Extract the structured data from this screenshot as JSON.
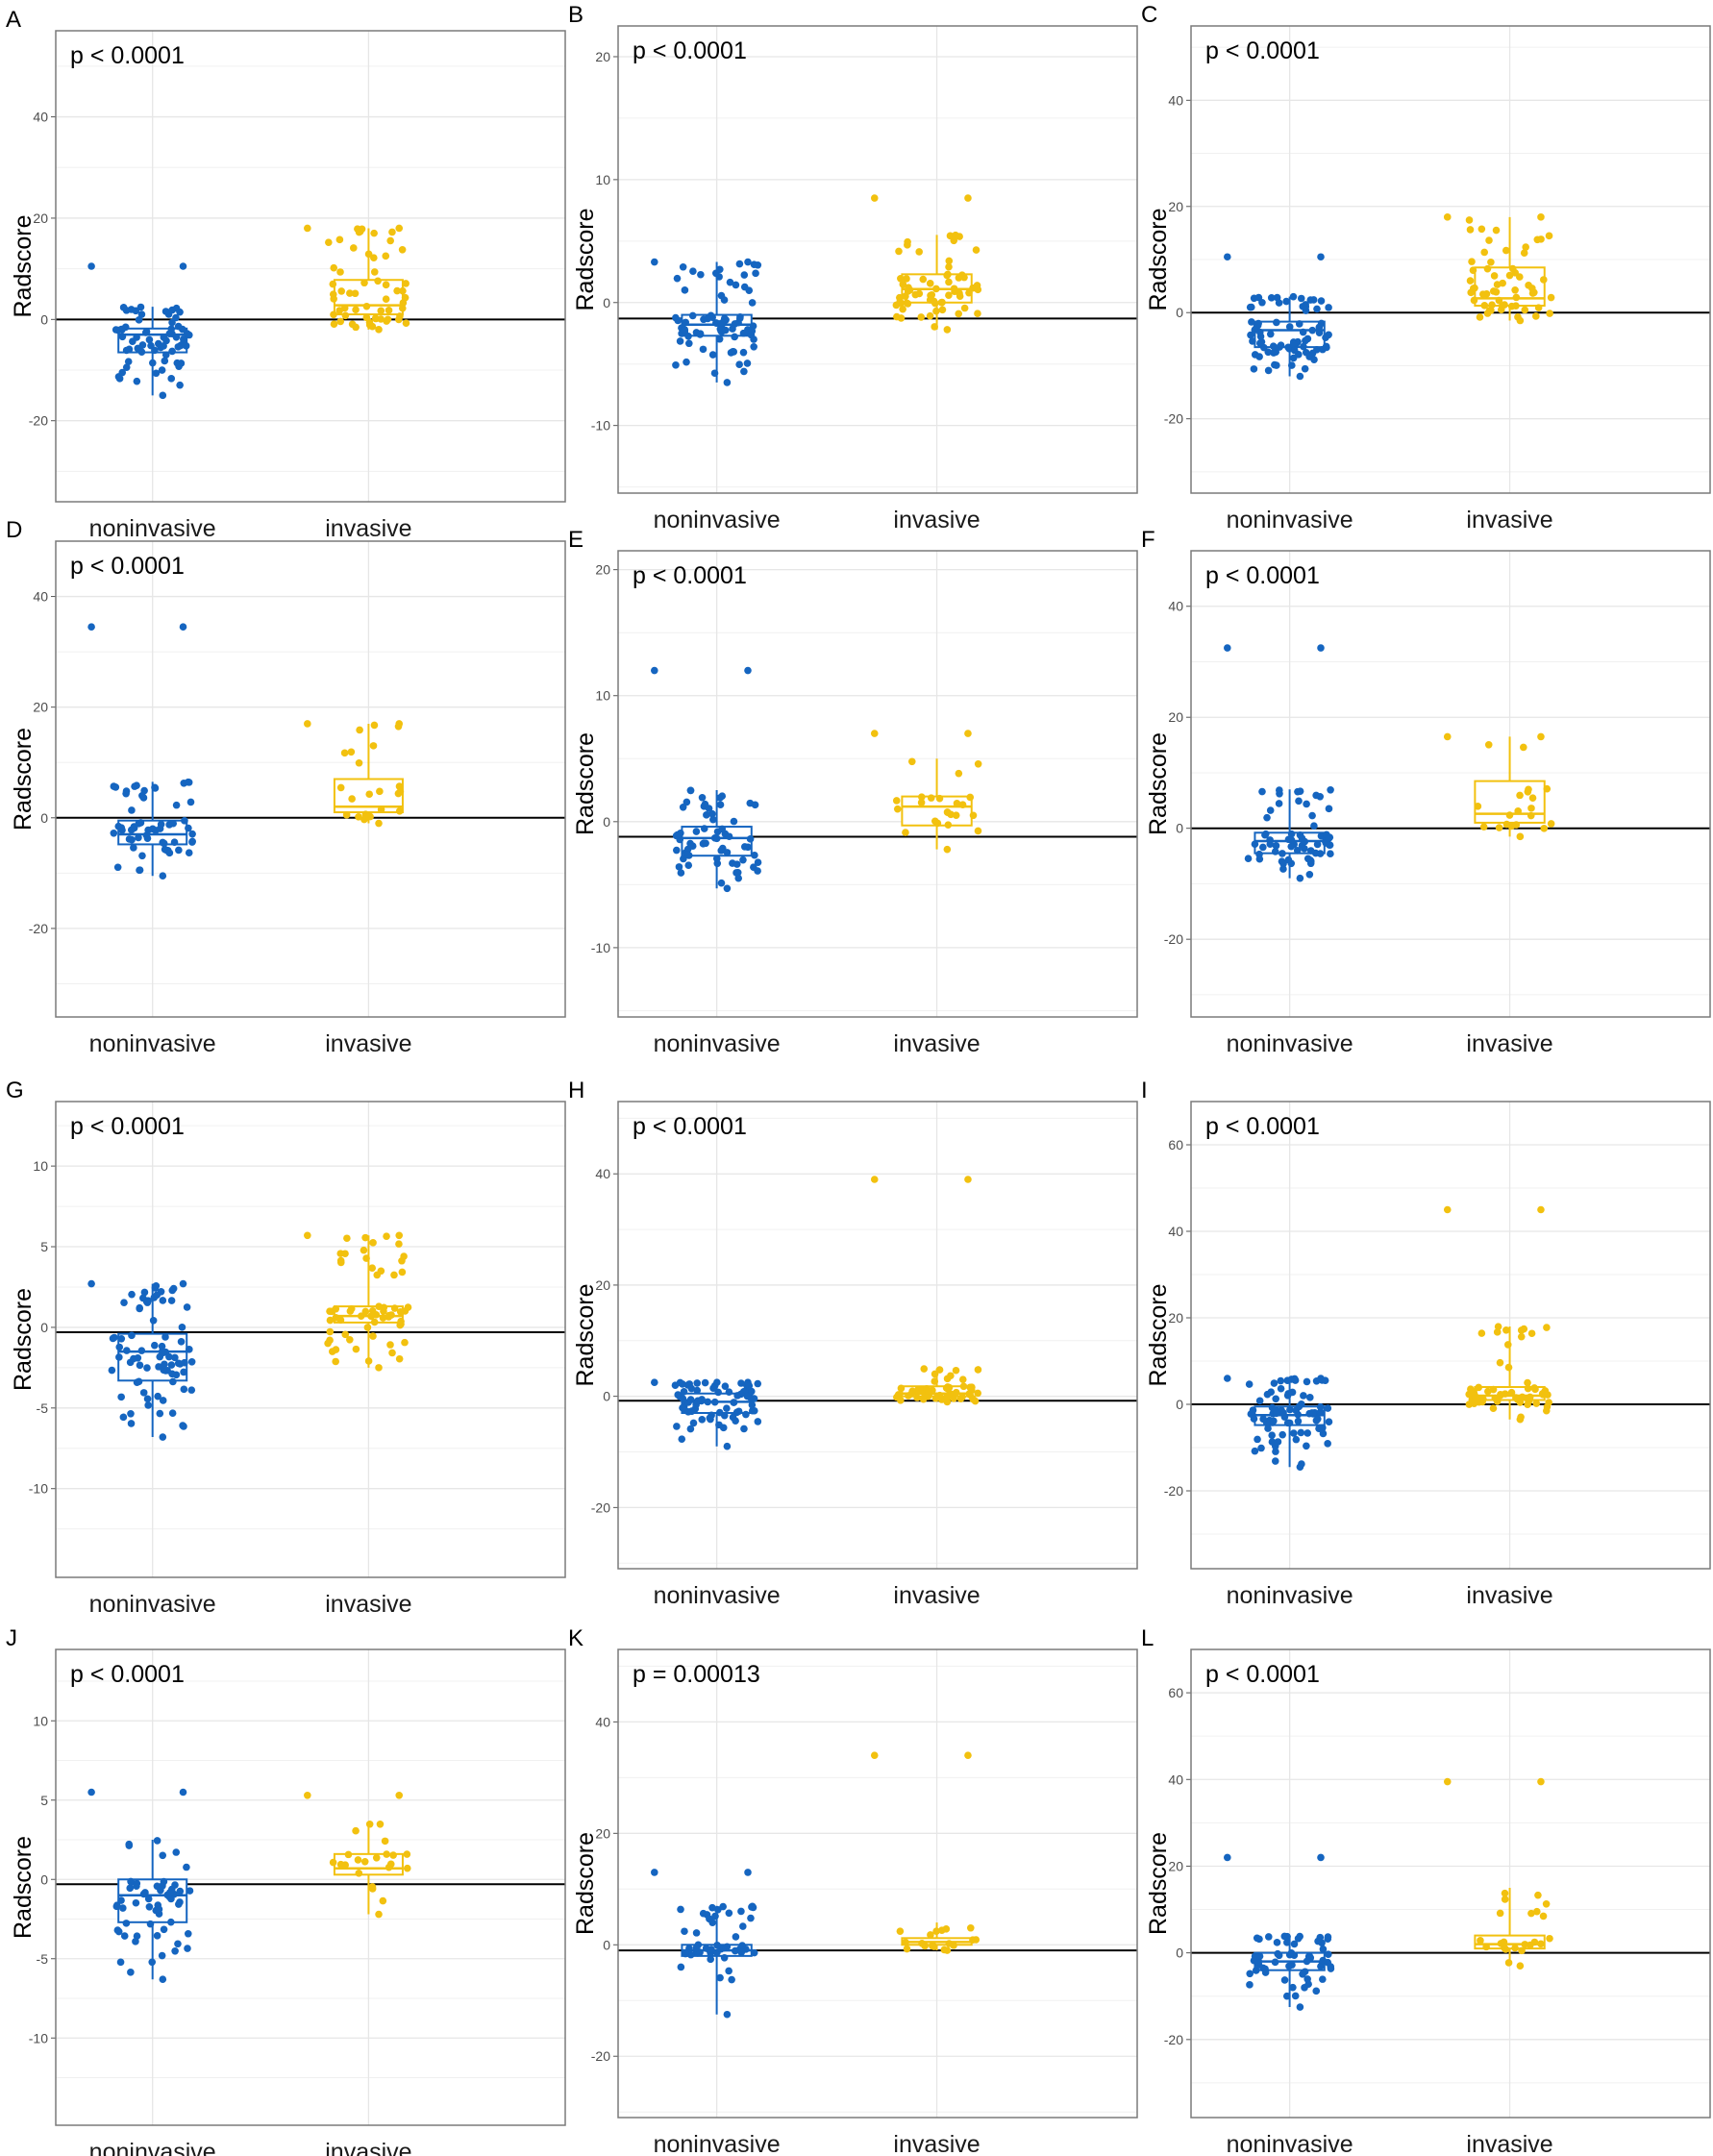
{
  "figure": {
    "colors": {
      "noninvasive": "#1565c0",
      "invasive": "#f2c10f",
      "frame": "#7a7a7a",
      "grid": "#e6e6e6",
      "zero_line": "#000000"
    }
  },
  "chart_data": [
    {
      "panel": "A",
      "type": "box-strip",
      "p_text": "p < 0.0001",
      "ylabel": "Radscore",
      "categories": [
        "noninvasive",
        "invasive"
      ],
      "yticks": [
        -20,
        0,
        20,
        40
      ],
      "ylim": [
        -36,
        57
      ],
      "hline": 0,
      "boxes": [
        {
          "name": "noninvasive",
          "q1": -6.5,
          "median": -3,
          "q3": -1.8,
          "whisker_low": -15,
          "whisker_high": 2.5,
          "n": 70,
          "points_min": -15,
          "points_max": 10.5
        },
        {
          "name": "invasive",
          "q1": 1,
          "median": 2.8,
          "q3": 7.8,
          "whisker_low": -2,
          "whisker_high": 18,
          "n": 60,
          "points_min": -2,
          "points_max": 18
        }
      ]
    },
    {
      "panel": "B",
      "type": "box-strip",
      "p_text": "p < 0.0001",
      "ylabel": "Radscore",
      "categories": [
        "noninvasive",
        "invasive"
      ],
      "yticks": [
        -10,
        0,
        10,
        20
      ],
      "ylim": [
        -15.5,
        22.5
      ],
      "hline": -1.3,
      "boxes": [
        {
          "name": "noninvasive",
          "q1": -2.7,
          "median": -1.8,
          "q3": -1.0,
          "whisker_low": -6.5,
          "whisker_high": 3.3,
          "n": 80,
          "points_min": -6.5,
          "points_max": 3.3
        },
        {
          "name": "invasive",
          "q1": 0,
          "median": 1.1,
          "q3": 2.3,
          "whisker_low": -2.2,
          "whisker_high": 5.5,
          "n": 65,
          "points_min": -2.2,
          "points_max": 8.5
        }
      ]
    },
    {
      "panel": "C",
      "type": "box-strip",
      "p_text": "p < 0.0001",
      "ylabel": "Radscore",
      "categories": [
        "noninvasive",
        "invasive"
      ],
      "yticks": [
        -20,
        0,
        20,
        40
      ],
      "ylim": [
        -34,
        54
      ],
      "hline": 0,
      "boxes": [
        {
          "name": "noninvasive",
          "q1": -6.5,
          "median": -3.3,
          "q3": -1.7,
          "whisker_low": -12,
          "whisker_high": 3,
          "n": 80,
          "points_min": -12,
          "points_max": 10.5
        },
        {
          "name": "invasive",
          "q1": 1.3,
          "median": 2.7,
          "q3": 8.5,
          "whisker_low": -1.5,
          "whisker_high": 18,
          "n": 60,
          "points_min": -1.5,
          "points_max": 18
        }
      ]
    },
    {
      "panel": "D",
      "type": "box-strip",
      "p_text": "p < 0.0001",
      "ylabel": "Radscore",
      "categories": [
        "noninvasive",
        "invasive"
      ],
      "yticks": [
        -20,
        0,
        20,
        40
      ],
      "ylim": [
        -36,
        50
      ],
      "hline": 0,
      "boxes": [
        {
          "name": "noninvasive",
          "q1": -4.8,
          "median": -3,
          "q3": -0.5,
          "whisker_low": -10.5,
          "whisker_high": 6.5,
          "n": 60,
          "points_min": -10.5,
          "points_max": 34.5
        },
        {
          "name": "invasive",
          "q1": 1,
          "median": 2,
          "q3": 7,
          "whisker_low": -1,
          "whisker_high": 17,
          "n": 25,
          "points_min": -1,
          "points_max": 17
        }
      ]
    },
    {
      "panel": "E",
      "type": "box-strip",
      "p_text": "p < 0.0001",
      "ylabel": "Radscore",
      "categories": [
        "noninvasive",
        "invasive"
      ],
      "yticks": [
        -10,
        0,
        10,
        20
      ],
      "ylim": [
        -15.5,
        21.5
      ],
      "hline": -1.2,
      "boxes": [
        {
          "name": "noninvasive",
          "q1": -2.7,
          "median": -1.3,
          "q3": -0.4,
          "whisker_low": -5.3,
          "whisker_high": 2.5,
          "n": 65,
          "points_min": -5.3,
          "points_max": 12
        },
        {
          "name": "invasive",
          "q1": -0.3,
          "median": 1.2,
          "q3": 2.0,
          "whisker_low": -2.2,
          "whisker_high": 5.0,
          "n": 25,
          "points_min": -2.2,
          "points_max": 7
        }
      ]
    },
    {
      "panel": "F",
      "type": "box-strip",
      "p_text": "p < 0.0001",
      "ylabel": "Radscore",
      "categories": [
        "noninvasive",
        "invasive"
      ],
      "yticks": [
        -20,
        0,
        20,
        40
      ],
      "ylim": [
        -34,
        50
      ],
      "hline": 0,
      "boxes": [
        {
          "name": "noninvasive",
          "q1": -4.5,
          "median": -2.3,
          "q3": -0.8,
          "whisker_low": -9,
          "whisker_high": 7,
          "n": 65,
          "points_min": -9,
          "points_max": 32.5
        },
        {
          "name": "invasive",
          "q1": 1,
          "median": 2.6,
          "q3": 8.5,
          "whisker_low": -1.5,
          "whisker_high": 16.5,
          "n": 22,
          "points_min": -1.5,
          "points_max": 16.5
        }
      ]
    },
    {
      "panel": "G",
      "type": "box-strip",
      "p_text": "p < 0.0001",
      "ylabel": "Radscore",
      "categories": [
        "noninvasive",
        "invasive"
      ],
      "yticks": [
        -10,
        -5,
        0,
        5,
        10
      ],
      "ylim": [
        -15.5,
        14
      ],
      "hline": -0.3,
      "boxes": [
        {
          "name": "noninvasive",
          "q1": -3.3,
          "median": -1.5,
          "q3": -0.4,
          "whisker_low": -6.8,
          "whisker_high": 2.7,
          "n": 80,
          "points_min": -6.8,
          "points_max": 2.7
        },
        {
          "name": "invasive",
          "q1": 0.3,
          "median": 0.7,
          "q3": 1.3,
          "whisker_low": -2.5,
          "whisker_high": 5.7,
          "n": 65,
          "points_min": -2.5,
          "points_max": 5.7
        }
      ]
    },
    {
      "panel": "H",
      "type": "box-strip",
      "p_text": "p < 0.0001",
      "ylabel": "Radscore",
      "categories": [
        "noninvasive",
        "invasive"
      ],
      "yticks": [
        -20,
        0,
        20,
        40
      ],
      "ylim": [
        -31,
        53
      ],
      "hline": -0.8,
      "boxes": [
        {
          "name": "noninvasive",
          "q1": -3,
          "median": -1,
          "q3": 0.5,
          "whisker_low": -9,
          "whisker_high": 2.5,
          "n": 75,
          "points_min": -9,
          "points_max": 2.5
        },
        {
          "name": "invasive",
          "q1": 0,
          "median": 0.5,
          "q3": 1.8,
          "whisker_low": -1,
          "whisker_high": 5,
          "n": 55,
          "points_min": -1,
          "points_max": 39
        }
      ]
    },
    {
      "panel": "I",
      "type": "box-strip",
      "p_text": "p < 0.0001",
      "ylabel": "Radscore",
      "categories": [
        "noninvasive",
        "invasive"
      ],
      "yticks": [
        -20,
        0,
        20,
        40,
        60
      ],
      "ylim": [
        -38,
        70
      ],
      "hline": 0,
      "boxes": [
        {
          "name": "noninvasive",
          "q1": -4.8,
          "median": -2.5,
          "q3": -0.5,
          "whisker_low": -14.5,
          "whisker_high": 6,
          "n": 80,
          "points_min": -14.5,
          "points_max": 6
        },
        {
          "name": "invasive",
          "q1": 1,
          "median": 2,
          "q3": 4,
          "whisker_low": -3.5,
          "whisker_high": 18,
          "n": 60,
          "points_min": -3.5,
          "points_max": 45
        }
      ]
    },
    {
      "panel": "J",
      "type": "box-strip",
      "p_text": "p < 0.0001",
      "ylabel": "Radscore",
      "categories": [
        "noninvasive",
        "invasive"
      ],
      "yticks": [
        -10,
        -5,
        0,
        5,
        10
      ],
      "ylim": [
        -15.5,
        14.5
      ],
      "hline": -0.3,
      "boxes": [
        {
          "name": "noninvasive",
          "q1": -2.7,
          "median": -1.0,
          "q3": 0,
          "whisker_low": -6.3,
          "whisker_high": 2.5,
          "n": 60,
          "points_min": -6.3,
          "points_max": 5.5
        },
        {
          "name": "invasive",
          "q1": 0.3,
          "median": 0.7,
          "q3": 1.6,
          "whisker_low": -2.2,
          "whisker_high": 3.5,
          "n": 25,
          "points_min": -2.2,
          "points_max": 5.3
        }
      ]
    },
    {
      "panel": "K",
      "type": "box-strip",
      "p_text": "p = 0.00013",
      "ylabel": "Radscore",
      "categories": [
        "noninvasive",
        "invasive"
      ],
      "yticks": [
        -20,
        0,
        20,
        40
      ],
      "ylim": [
        -31,
        53
      ],
      "hline": -1,
      "boxes": [
        {
          "name": "noninvasive",
          "q1": -2,
          "median": -1,
          "q3": 0,
          "whisker_low": -12.5,
          "whisker_high": 7,
          "n": 55,
          "points_min": -12.5,
          "points_max": 13
        },
        {
          "name": "invasive",
          "q1": 0,
          "median": 0.5,
          "q3": 1.2,
          "whisker_low": -1,
          "whisker_high": 4,
          "n": 20,
          "points_min": -1,
          "points_max": 34
        }
      ]
    },
    {
      "panel": "L",
      "type": "box-strip",
      "p_text": "p < 0.0001",
      "ylabel": "Radscore",
      "categories": [
        "noninvasive",
        "invasive"
      ],
      "yticks": [
        -20,
        0,
        20,
        40,
        60
      ],
      "ylim": [
        -38,
        70
      ],
      "hline": 0,
      "boxes": [
        {
          "name": "noninvasive",
          "q1": -4,
          "median": -2,
          "q3": 0,
          "whisker_low": -12.5,
          "whisker_high": 4,
          "n": 60,
          "points_min": -12.5,
          "points_max": 22
        },
        {
          "name": "invasive",
          "q1": 1,
          "median": 2,
          "q3": 4,
          "whisker_low": -3,
          "whisker_high": 15,
          "n": 25,
          "points_min": -3,
          "points_max": 39.5
        }
      ]
    }
  ]
}
